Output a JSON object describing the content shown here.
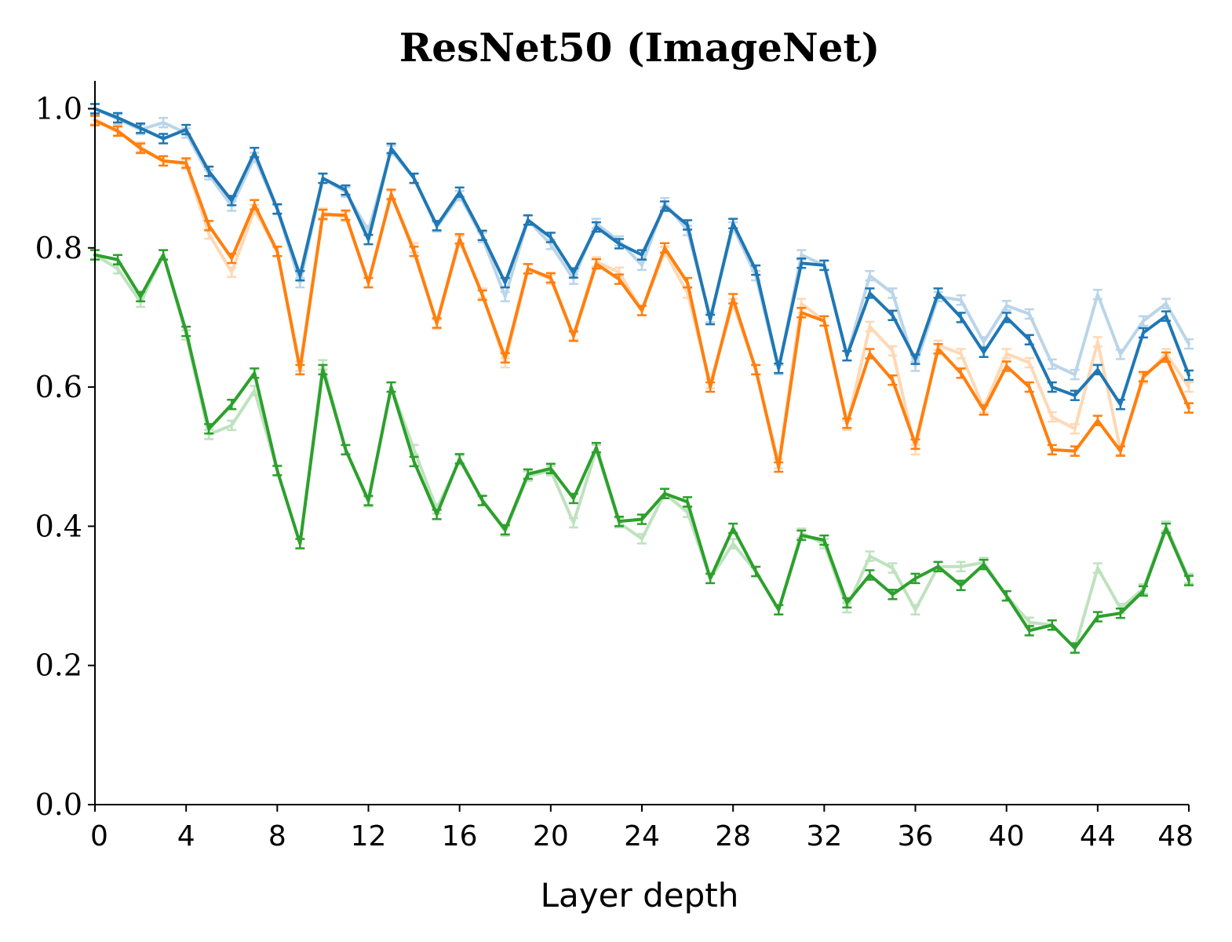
{
  "chart_data": {
    "type": "line",
    "title": "ResNet50 (ImageNet)",
    "xlabel": "Layer depth",
    "ylabel": "",
    "xlim": [
      0,
      48
    ],
    "ylim": [
      0,
      1.04
    ],
    "xticks": [
      0,
      4,
      8,
      12,
      16,
      20,
      24,
      28,
      32,
      36,
      40,
      44,
      48
    ],
    "yticks": [
      0.0,
      0.2,
      0.4,
      0.6,
      0.8,
      1.0
    ],
    "ytick_labels": [
      "0.0",
      "0.2",
      "0.4",
      "0.6",
      "0.8",
      "1.0"
    ],
    "xtick_labels": [
      "0",
      "4",
      "8",
      "12",
      "16",
      "20",
      "24",
      "28",
      "32",
      "36",
      "40",
      "44",
      "48"
    ],
    "grid": false,
    "legend": "none",
    "x": [
      0,
      1,
      2,
      3,
      4,
      5,
      6,
      7,
      8,
      9,
      10,
      11,
      12,
      13,
      14,
      15,
      16,
      17,
      18,
      19,
      20,
      21,
      22,
      23,
      24,
      25,
      26,
      27,
      28,
      29,
      30,
      31,
      32,
      33,
      34,
      35,
      36,
      37,
      38,
      39,
      40,
      41,
      42,
      43,
      44,
      45,
      46,
      47,
      48
    ],
    "series": [
      {
        "name": "blue",
        "color": "#1f77b4",
        "opacity": 1,
        "values": [
          1.0,
          0.987,
          0.972,
          0.957,
          0.97,
          0.91,
          0.868,
          0.937,
          0.856,
          0.76,
          0.9,
          0.883,
          0.812,
          0.943,
          0.9,
          0.832,
          0.88,
          0.818,
          0.75,
          0.84,
          0.815,
          0.764,
          0.83,
          0.806,
          0.79,
          0.86,
          0.833,
          0.697,
          0.835,
          0.768,
          0.627,
          0.778,
          0.775,
          0.645,
          0.735,
          0.703,
          0.64,
          0.735,
          0.7,
          0.65,
          0.7,
          0.668,
          0.6,
          0.588,
          0.625,
          0.575,
          0.678,
          0.702,
          0.617
        ]
      },
      {
        "name": "blue-faded",
        "color": "#1f77b4",
        "opacity": 0.3,
        "values": [
          1.0,
          0.985,
          0.97,
          0.98,
          0.965,
          0.905,
          0.86,
          0.93,
          0.855,
          0.75,
          0.9,
          0.88,
          0.825,
          0.94,
          0.9,
          0.83,
          0.875,
          0.815,
          0.73,
          0.84,
          0.805,
          0.755,
          0.835,
          0.81,
          0.775,
          0.865,
          0.825,
          0.7,
          0.83,
          0.76,
          0.625,
          0.79,
          0.775,
          0.645,
          0.76,
          0.735,
          0.63,
          0.73,
          0.725,
          0.665,
          0.717,
          0.705,
          0.633,
          0.618,
          0.733,
          0.647,
          0.695,
          0.72,
          0.662
        ]
      },
      {
        "name": "orange",
        "color": "#ff7f0e",
        "opacity": 1,
        "values": [
          0.983,
          0.968,
          0.943,
          0.925,
          0.922,
          0.832,
          0.785,
          0.862,
          0.795,
          0.625,
          0.848,
          0.847,
          0.75,
          0.877,
          0.795,
          0.692,
          0.813,
          0.732,
          0.642,
          0.77,
          0.757,
          0.673,
          0.777,
          0.755,
          0.71,
          0.8,
          0.75,
          0.6,
          0.727,
          0.625,
          0.485,
          0.707,
          0.695,
          0.548,
          0.648,
          0.61,
          0.518,
          0.655,
          0.62,
          0.567,
          0.63,
          0.6,
          0.51,
          0.508,
          0.552,
          0.508,
          0.615,
          0.643,
          0.57
        ]
      },
      {
        "name": "orange-faded",
        "color": "#ff7f0e",
        "opacity": 0.3,
        "values": [
          0.985,
          0.967,
          0.945,
          0.925,
          0.92,
          0.82,
          0.765,
          0.855,
          0.795,
          0.63,
          0.85,
          0.845,
          0.75,
          0.875,
          0.8,
          0.69,
          0.81,
          0.735,
          0.635,
          0.77,
          0.755,
          0.675,
          0.78,
          0.765,
          0.71,
          0.795,
          0.735,
          0.605,
          0.72,
          0.625,
          0.49,
          0.72,
          0.695,
          0.545,
          0.687,
          0.652,
          0.51,
          0.66,
          0.648,
          0.57,
          0.648,
          0.635,
          0.557,
          0.54,
          0.665,
          0.51,
          0.612,
          0.648,
          0.6
        ]
      },
      {
        "name": "green",
        "color": "#2ca02c",
        "opacity": 1,
        "values": [
          0.79,
          0.783,
          0.73,
          0.79,
          0.68,
          0.54,
          0.575,
          0.62,
          0.48,
          0.375,
          0.625,
          0.51,
          0.437,
          0.6,
          0.493,
          0.417,
          0.497,
          0.437,
          0.395,
          0.475,
          0.483,
          0.44,
          0.513,
          0.407,
          0.41,
          0.447,
          0.435,
          0.325,
          0.397,
          0.335,
          0.28,
          0.387,
          0.38,
          0.29,
          0.33,
          0.302,
          0.325,
          0.342,
          0.315,
          0.345,
          0.3,
          0.25,
          0.258,
          0.225,
          0.27,
          0.275,
          0.307,
          0.397,
          0.322
        ]
      },
      {
        "name": "green-faded",
        "color": "#2ca02c",
        "opacity": 0.3,
        "values": [
          0.79,
          0.77,
          0.722,
          0.79,
          0.675,
          0.532,
          0.545,
          0.595,
          0.48,
          0.375,
          0.632,
          0.51,
          0.435,
          0.6,
          0.51,
          0.425,
          0.495,
          0.437,
          0.393,
          0.472,
          0.48,
          0.405,
          0.51,
          0.405,
          0.382,
          0.447,
          0.42,
          0.325,
          0.375,
          0.335,
          0.28,
          0.39,
          0.375,
          0.283,
          0.357,
          0.34,
          0.28,
          0.342,
          0.342,
          0.348,
          0.3,
          0.262,
          0.258,
          0.225,
          0.34,
          0.282,
          0.31,
          0.4,
          0.325
        ]
      }
    ]
  }
}
